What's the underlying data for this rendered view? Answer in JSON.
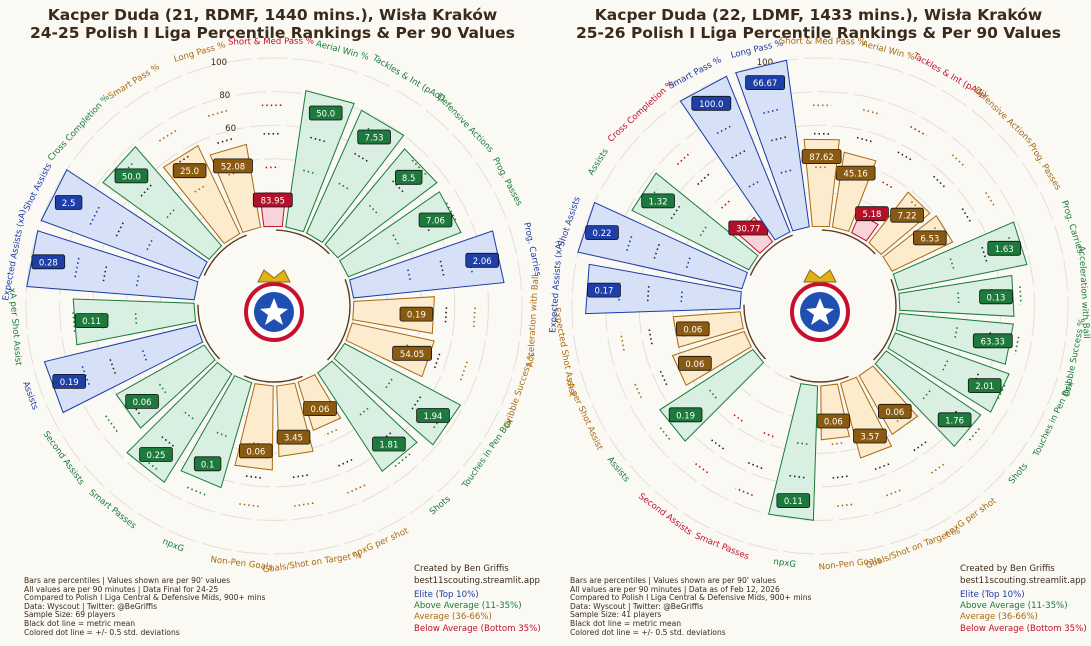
{
  "colors": {
    "elite": "#1a3aa6",
    "above": "#1a7a3a",
    "avg": "#a86a10",
    "below": "#c0102a",
    "fill_elite": "#d6e1f7",
    "fill_above": "#d9efe1",
    "fill_avg": "#fcebcc",
    "fill_below": "#f9d3da",
    "box_elite": "#1f3fa8",
    "box_above": "#1d7a3c",
    "box_avg": "#8a5a10",
    "box_below": "#b3102a"
  },
  "panels": [
    {
      "title_line1": "Kacper Duda (21, RDMF, 1440 mins.), Wisła Kraków",
      "title_line2": "24-25 Polish I Liga Percentile Rankings & Per 90 Values",
      "notes": [
        "Bars are percentiles | Values shown are per 90' values",
        "All values are per 90 minutes | Data Final for 24-25",
        "Compared to Polish I Liga Central & Defensive Mids, 900+ mins",
        "Data: Wyscout | Twitter: @BeGriffis",
        "Sample Size: 69 players",
        "Black dot line = metric mean",
        "Colored dot line = +/- 0.5 std. deviations"
      ],
      "credit_line1": "Created by Ben Griffis",
      "credit_line2": "best11scouting.streamlit.app",
      "legend": [
        "Elite (Top 10%)",
        "Above Average (11-35%)",
        "Average (36-66%)",
        "Below Average (Bottom 35%)"
      ],
      "chart_data": {
        "type": "radial-bar",
        "ticks": [
          "0",
          "20",
          "40",
          "60",
          "80",
          "100"
        ],
        "metrics": [
          {
            "name": "Aerial Win %",
            "percentile": 82,
            "value": "50.0",
            "tier": "above"
          },
          {
            "name": "Tackles & Int (pAdj)",
            "percentile": 80,
            "value": "7.53",
            "tier": "above"
          },
          {
            "name": "Defensive Actions",
            "percentile": 74,
            "value": "8.5",
            "tier": "above"
          },
          {
            "name": "Prog. Passes",
            "percentile": 72,
            "value": "7.06",
            "tier": "above"
          },
          {
            "name": "Prog. Carries",
            "percentile": 90,
            "value": "2.06",
            "tier": "elite"
          },
          {
            "name": "Acceleration with Ball",
            "percentile": 48,
            "value": "0.19",
            "tier": "avg"
          },
          {
            "name": "Dribble Success %",
            "percentile": 50,
            "value": "54.05",
            "tier": "avg"
          },
          {
            "name": "Touches in Pen Box",
            "percentile": 78,
            "value": "1.94",
            "tier": "above"
          },
          {
            "name": "Shots",
            "percentile": 70,
            "value": "1.81",
            "tier": "above"
          },
          {
            "name": "npxG per shot",
            "percentile": 30,
            "value": "0.06",
            "tier": "avg"
          },
          {
            "name": "Goals/Shot on Target %",
            "percentile": 42,
            "value": "3.45",
            "tier": "avg"
          },
          {
            "name": "Non-Pen Goals",
            "percentile": 50,
            "value": "0.06",
            "tier": "avg"
          },
          {
            "name": "npxG",
            "percentile": 65,
            "value": "0.1",
            "tier": "above"
          },
          {
            "name": "Smart Passes",
            "percentile": 76,
            "value": "0.25",
            "tier": "above"
          },
          {
            "name": "Second Assists",
            "percentile": 60,
            "value": "0.06",
            "tier": "above"
          },
          {
            "name": "Assists",
            "percentile": 93,
            "value": "0.19",
            "tier": "elite"
          },
          {
            "name": "xA per Shot Assist",
            "percentile": 72,
            "value": "0.11",
            "tier": "above"
          },
          {
            "name": "Expected Assists (xA)",
            "percentile": 100,
            "value": "0.28",
            "tier": "elite"
          },
          {
            "name": "Shot Assists",
            "percentile": 100,
            "value": "2.5",
            "tier": "elite"
          },
          {
            "name": "Cross Completion %",
            "percentile": 78,
            "value": "50.0",
            "tier": "above"
          },
          {
            "name": "Smart Pass %",
            "percentile": 58,
            "value": "25.0",
            "tier": "avg"
          },
          {
            "name": "Long Pass %",
            "percentile": 50,
            "value": "52.08",
            "tier": "avg"
          },
          {
            "name": "Short & Med Pass %",
            "percentile": 20,
            "value": "83.95",
            "tier": "below"
          }
        ]
      }
    },
    {
      "title_line1": "Kacper Duda (22, LDMF, 1433 mins.), Wisła Kraków",
      "title_line2": "25-26 Polish I Liga Percentile Rankings & Per 90 Values",
      "notes": [
        "Bars are percentiles | Values shown are per 90' values",
        "All values are per 90 minutes | Data as of Feb 12, 2026",
        "Compared to Polish I Liga Central & Defensive Mids, 900+ mins",
        "Data: Wyscout | Twitter: @BeGriffis",
        "Sample Size: 41 players",
        "Black dot line = metric mean",
        "Colored dot line = +/- 0.5 std. deviations"
      ],
      "credit_line1": "Created by Ben Griffis",
      "credit_line2": "best11scouting.streamlit.app",
      "legend": [
        "Elite (Top 10%)",
        "Above Average (11-35%)",
        "Average (36-66%)",
        "Below Average (Bottom 35%)"
      ],
      "chart_data": {
        "type": "radial-bar",
        "ticks": [
          "0",
          "20",
          "40",
          "60",
          "80",
          "100"
        ],
        "metrics": [
          {
            "name": "Aerial Win %",
            "percentile": 45,
            "value": "45.16",
            "tier": "avg"
          },
          {
            "name": "Tackles & Int (pAdj)",
            "percentile": 12,
            "value": "5.18",
            "tier": "below"
          },
          {
            "name": "Defensive Actions",
            "percentile": 38,
            "value": "7.22",
            "tier": "avg"
          },
          {
            "name": "Prog. Passes",
            "percentile": 40,
            "value": "6.53",
            "tier": "avg"
          },
          {
            "name": "Prog. Carries",
            "percentile": 78,
            "value": "1.63",
            "tier": "above"
          },
          {
            "name": "Acceleration with Ball",
            "percentile": 68,
            "value": "0.13",
            "tier": "above"
          },
          {
            "name": "Dribble Success %",
            "percentile": 68,
            "value": "63.33",
            "tier": "above"
          },
          {
            "name": "Touches in Pen Box",
            "percentile": 72,
            "value": "2.01",
            "tier": "above"
          },
          {
            "name": "Shots",
            "percentile": 68,
            "value": "1.76",
            "tier": "above"
          },
          {
            "name": "npxG per shot",
            "percentile": 40,
            "value": "0.06",
            "tier": "avg"
          },
          {
            "name": "Goals/Shot on Target %",
            "percentile": 46,
            "value": "3.57",
            "tier": "avg"
          },
          {
            "name": "Non-Pen Goals",
            "percentile": 32,
            "value": "0.06",
            "tier": "avg"
          },
          {
            "name": "npxG",
            "percentile": 80,
            "value": "0.11",
            "tier": "above"
          },
          {
            "name": "Smart Passes",
            "percentile": 0,
            "value": "",
            "tier": "below"
          },
          {
            "name": "Second Assists",
            "percentile": 0,
            "value": "",
            "tier": "below"
          },
          {
            "name": "Assists",
            "percentile": 66,
            "value": "0.19",
            "tier": "above"
          },
          {
            "name": "xA per Shot Assist",
            "percentile": 45,
            "value": "0.06",
            "tier": "avg"
          },
          {
            "name": "Expected Shot Assist",
            "percentile": 40,
            "value": "0.06",
            "tier": "avg"
          },
          {
            "name": "Expected Assists (xA)",
            "percentile": 92,
            "value": "0.17",
            "tier": "elite"
          },
          {
            "name": "Shot Assists",
            "percentile": 100,
            "value": "0.22",
            "tier": "elite"
          },
          {
            "name": "Assists",
            "percentile": 78,
            "value": "1.32",
            "tier": "above"
          },
          {
            "name": "Cross Completion %",
            "percentile": 18,
            "value": "30.77",
            "tier": "below"
          },
          {
            "name": "Smart Pass %",
            "percentile": 100,
            "value": "100.0",
            "tier": "elite"
          },
          {
            "name": "Long Pass %",
            "percentile": 100,
            "value": "66.67",
            "tier": "elite"
          },
          {
            "name": "Short & Med Pass %",
            "percentile": 52,
            "value": "87.62",
            "tier": "avg"
          }
        ]
      }
    }
  ]
}
